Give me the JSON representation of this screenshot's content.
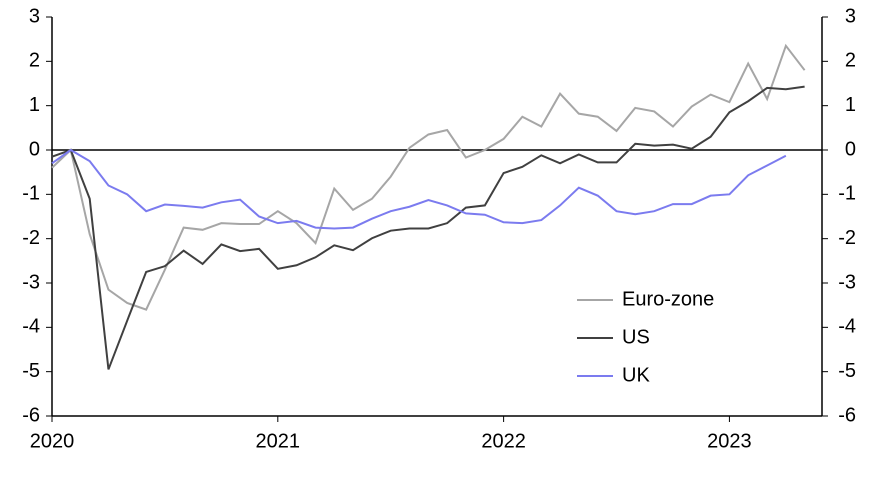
{
  "chart_data": {
    "type": "line",
    "x": [
      2020,
      2020.083,
      2020.167,
      2020.25,
      2020.333,
      2020.417,
      2020.5,
      2020.583,
      2020.667,
      2020.75,
      2020.833,
      2020.917,
      2021,
      2021.083,
      2021.167,
      2021.25,
      2021.333,
      2021.417,
      2021.5,
      2021.583,
      2021.667,
      2021.75,
      2021.833,
      2021.917,
      2022,
      2022.083,
      2022.167,
      2022.25,
      2022.333,
      2022.417,
      2022.5,
      2022.583,
      2022.667,
      2022.75,
      2022.833,
      2022.917,
      2023,
      2023.083,
      2023.167,
      2023.25,
      2023.333
    ],
    "series": [
      {
        "name": "Euro-zone",
        "color": "#a6a6a6",
        "values": [
          -0.4,
          0,
          -1.9,
          -3.15,
          -3.45,
          -3.6,
          -2.7,
          -1.75,
          -1.8,
          -1.65,
          -1.67,
          -1.67,
          -1.38,
          -1.65,
          -2.1,
          -0.87,
          -1.35,
          -1.1,
          -0.6,
          0.05,
          0.35,
          0.45,
          -0.17,
          0,
          0.25,
          0.75,
          0.53,
          1.27,
          0.82,
          0.75,
          0.43,
          0.95,
          0.87,
          0.53,
          0.98,
          1.25,
          1.08,
          1.95,
          1.15,
          2.35,
          1.8
        ]
      },
      {
        "name": "US",
        "color": "#404040",
        "values": [
          -0.15,
          0,
          -1.1,
          -4.95,
          -3.85,
          -2.75,
          -2.62,
          -2.27,
          -2.57,
          -2.13,
          -2.28,
          -2.23,
          -2.68,
          -2.6,
          -2.42,
          -2.15,
          -2.26,
          -1.99,
          -1.82,
          -1.77,
          -1.77,
          -1.65,
          -1.3,
          -1.25,
          -0.52,
          -0.38,
          -0.12,
          -0.3,
          -0.1,
          -0.28,
          -0.28,
          0.14,
          0.1,
          0.12,
          0.03,
          0.3,
          0.85,
          1.1,
          1.4,
          1.37,
          1.43
        ]
      },
      {
        "name": "UK",
        "color": "#7b7bef",
        "values": [
          -0.3,
          0,
          -0.25,
          -0.8,
          -1,
          -1.38,
          -1.23,
          -1.26,
          -1.3,
          -1.18,
          -1.12,
          -1.5,
          -1.65,
          -1.6,
          -1.75,
          -1.77,
          -1.75,
          -1.55,
          -1.38,
          -1.28,
          -1.13,
          -1.25,
          -1.43,
          -1.46,
          -1.63,
          -1.65,
          -1.58,
          -1.25,
          -0.85,
          -1.03,
          -1.38,
          -1.45,
          -1.38,
          -1.22,
          -1.22,
          -1.03,
          -1,
          -0.57,
          -0.35,
          -0.13,
          null
        ]
      }
    ],
    "xlim": [
      2020,
      2023.41
    ],
    "xticks": [
      2020,
      2021,
      2022,
      2023
    ],
    "ylim": [
      -6,
      3
    ],
    "yticks": [
      -6,
      -5,
      -4,
      -3,
      -2,
      -1,
      0,
      1,
      2,
      3
    ],
    "y2lim": [
      -6,
      3
    ],
    "y2ticks": [
      -6,
      -5,
      -4,
      -3,
      -2,
      -1,
      0,
      1,
      2,
      3
    ],
    "legend": "lower-right",
    "grid": false
  }
}
